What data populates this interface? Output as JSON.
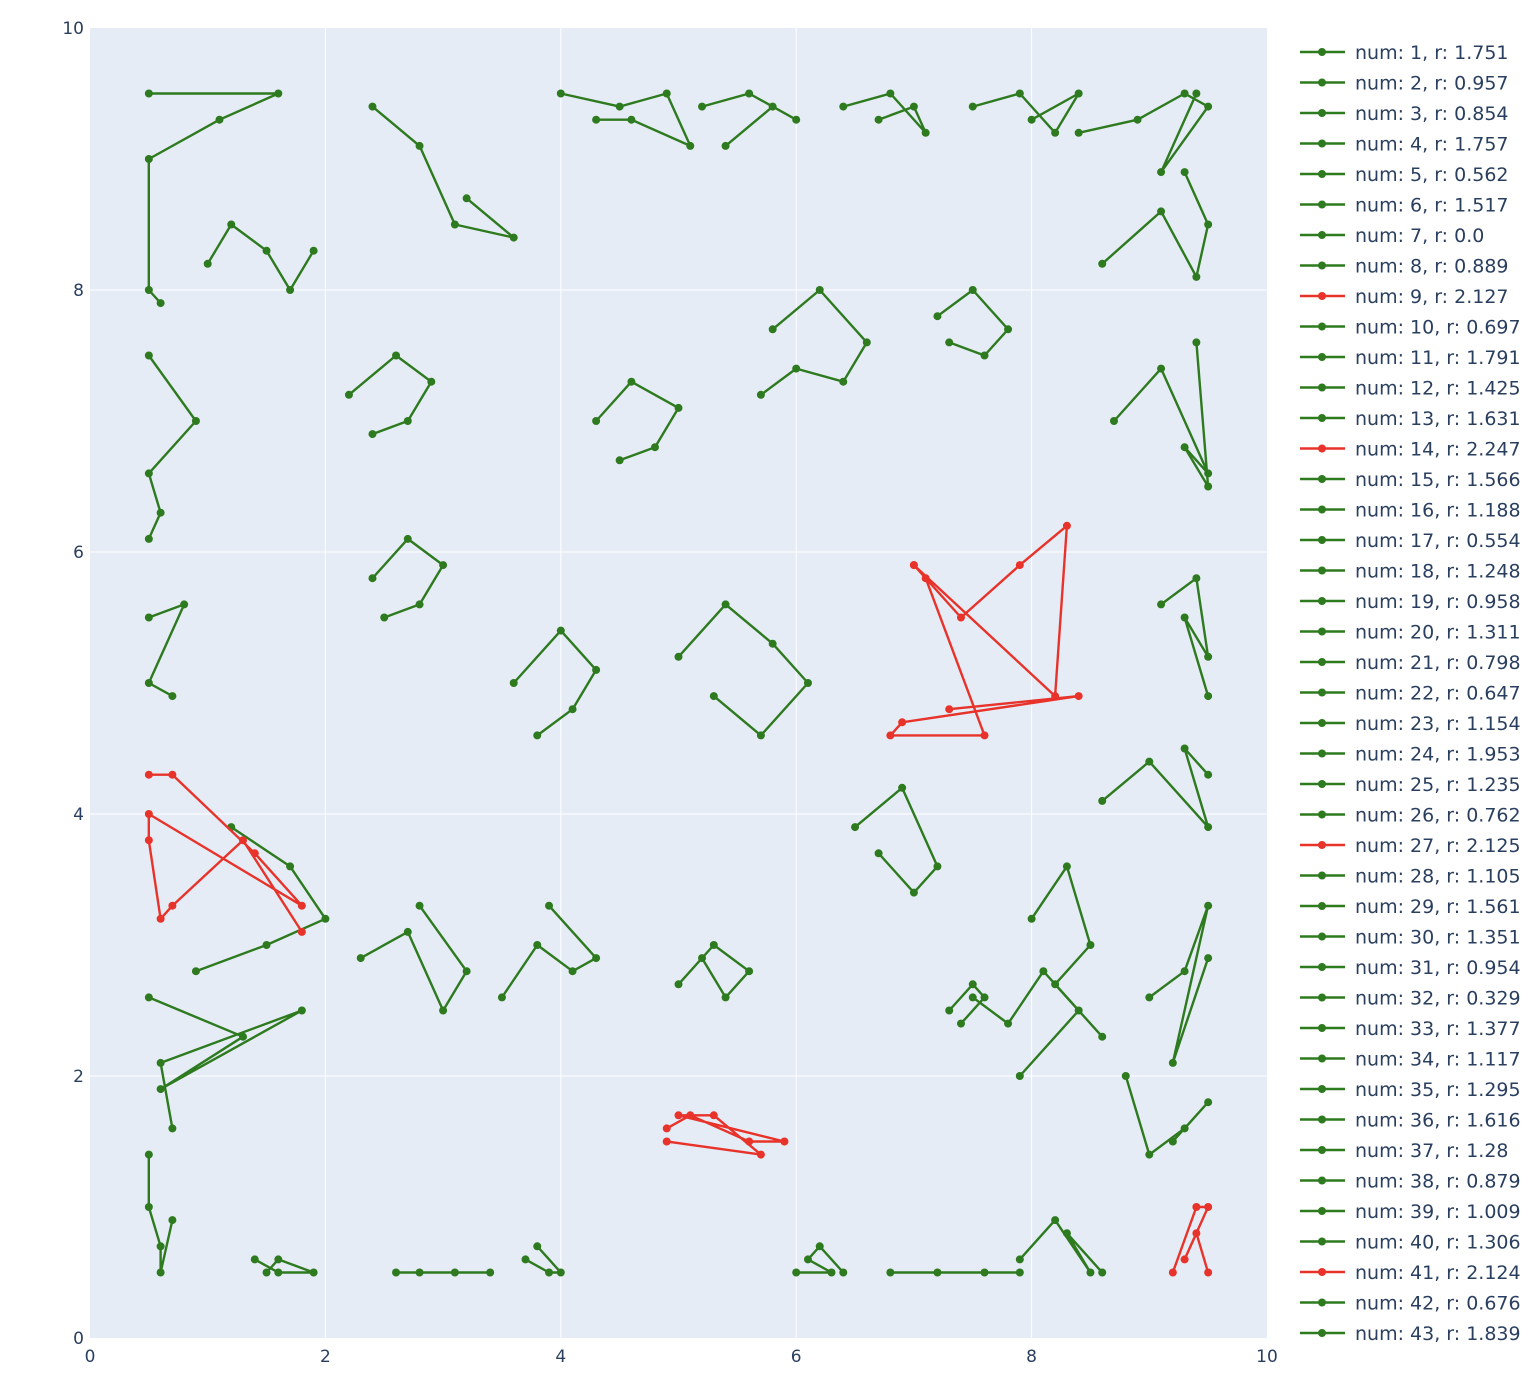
{
  "chart_data": {
    "type": "line",
    "title": "",
    "xlabel": "",
    "ylabel": "",
    "xlim": [
      0,
      10
    ],
    "ylim": [
      0,
      10
    ],
    "x_ticks": [
      "0",
      "2",
      "4",
      "6",
      "8",
      "10"
    ],
    "y_ticks": [
      "0",
      "2",
      "4",
      "6",
      "8",
      "10"
    ],
    "grid": true,
    "legend_position": "right",
    "colors": {
      "normal": "#2e7a1f",
      "highlight": "#e8332a",
      "plot_bg": "#e5ecf6",
      "grid": "#ffffff"
    },
    "series": [
      {
        "name": "num: 1, r: 1.751",
        "x": [
          0.5,
          1.6,
          1.1,
          0.5,
          0.5,
          0.6
        ],
        "y": [
          9.5,
          9.5,
          9.3,
          9.0,
          8.0,
          7.9
        ]
      },
      {
        "name": "num: 2, r: 0.957",
        "x": [
          0.5,
          0.9,
          0.5,
          0.6,
          0.5
        ],
        "y": [
          7.5,
          7.0,
          6.6,
          6.3,
          6.1
        ]
      },
      {
        "name": "num: 3, r: 0.854",
        "x": [
          0.5,
          0.8,
          0.5,
          0.7
        ],
        "y": [
          5.5,
          5.6,
          5.0,
          4.9
        ]
      },
      {
        "name": "num: 4, r: 1.757",
        "x": [
          0.5,
          1.3,
          0.6,
          1.8,
          0.6,
          0.7
        ],
        "y": [
          2.6,
          2.3,
          1.9,
          2.5,
          2.1,
          1.6
        ]
      },
      {
        "name": "num: 5, r: 0.562",
        "x": [
          0.5,
          0.5,
          0.6,
          0.6,
          0.7
        ],
        "y": [
          1.4,
          1.0,
          0.7,
          0.5,
          0.9
        ]
      },
      {
        "name": "num: 6, r: 1.517",
        "x": [
          1.4,
          1.6,
          1.9,
          1.6,
          1.5
        ],
        "y": [
          0.6,
          0.5,
          0.5,
          0.6,
          0.5
        ]
      },
      {
        "name": "num: 7, r: 0.0",
        "x": [
          2.6,
          2.8,
          3.1,
          3.4
        ],
        "y": [
          0.5,
          0.5,
          0.5,
          0.5
        ]
      },
      {
        "name": "num: 8, r: 0.889",
        "x": [
          3.7,
          3.9,
          4.0,
          3.8
        ],
        "y": [
          0.6,
          0.5,
          0.5,
          0.7
        ]
      },
      {
        "name": "num: 9, r: 2.127",
        "x": [
          4.9,
          5.1,
          5.6,
          5.9,
          5.0,
          5.3,
          5.7,
          4.9
        ],
        "y": [
          1.6,
          1.7,
          1.5,
          1.5,
          1.7,
          1.7,
          1.4,
          1.5
        ]
      },
      {
        "name": "num: 10, r: 0.697",
        "x": [
          6.0,
          6.3,
          6.1,
          6.2,
          6.4
        ],
        "y": [
          0.5,
          0.5,
          0.6,
          0.7,
          0.5
        ]
      },
      {
        "name": "num: 11, r: 1.791",
        "x": [
          6.8,
          7.2,
          7.6,
          7.9
        ],
        "y": [
          0.5,
          0.5,
          0.5,
          0.5
        ]
      },
      {
        "name": "num: 12, r: 1.425",
        "x": [
          7.9,
          8.2,
          8.5,
          8.3,
          8.6
        ],
        "y": [
          0.6,
          0.9,
          0.5,
          0.8,
          0.5
        ]
      },
      {
        "name": "num: 13, r: 1.631",
        "x": [
          8.8,
          9.0,
          9.3,
          9.5,
          9.2
        ],
        "y": [
          2.0,
          1.4,
          1.6,
          1.8,
          1.5
        ]
      },
      {
        "name": "num: 14, r: 2.247",
        "x": [
          9.2,
          9.4,
          9.5,
          9.3,
          9.4,
          9.5
        ],
        "y": [
          0.5,
          1.0,
          1.0,
          0.6,
          0.8,
          0.5
        ]
      },
      {
        "name": "num: 15, r: 1.566",
        "x": [
          9.0,
          9.3,
          9.5,
          9.2,
          9.5
        ],
        "y": [
          2.6,
          2.8,
          3.3,
          2.1,
          2.9
        ]
      },
      {
        "name": "num: 16, r: 1.188",
        "x": [
          8.6,
          9.0,
          9.5,
          9.3,
          9.5
        ],
        "y": [
          4.1,
          4.4,
          3.9,
          4.5,
          4.3
        ]
      },
      {
        "name": "num: 17, r: 0.554",
        "x": [
          9.1,
          9.4,
          9.5,
          9.3,
          9.5
        ],
        "y": [
          5.6,
          5.8,
          5.2,
          5.5,
          4.9
        ]
      },
      {
        "name": "num: 18, r: 1.248",
        "x": [
          8.7,
          9.1,
          9.5,
          9.3,
          9.5,
          9.4
        ],
        "y": [
          7.0,
          7.4,
          6.6,
          6.8,
          6.5,
          7.6
        ]
      },
      {
        "name": "num: 19, r: 0.958",
        "x": [
          8.6,
          9.1,
          9.4,
          9.5,
          9.3
        ],
        "y": [
          8.2,
          8.6,
          8.1,
          8.5,
          8.9
        ]
      },
      {
        "name": "num: 20, r: 1.311",
        "x": [
          8.4,
          8.9,
          9.3,
          9.5,
          9.1,
          9.4
        ],
        "y": [
          9.2,
          9.3,
          9.5,
          9.4,
          8.9,
          9.5
        ]
      },
      {
        "name": "num: 21, r: 0.798",
        "x": [
          7.5,
          7.9,
          8.2,
          8.4,
          8.0
        ],
        "y": [
          9.4,
          9.5,
          9.2,
          9.5,
          9.3
        ]
      },
      {
        "name": "num: 22, r: 0.647",
        "x": [
          6.4,
          6.8,
          7.1,
          7.0,
          6.7
        ],
        "y": [
          9.4,
          9.5,
          9.2,
          9.4,
          9.3
        ]
      },
      {
        "name": "num: 23, r: 1.154",
        "x": [
          5.2,
          5.6,
          6.0,
          5.8,
          5.4
        ],
        "y": [
          9.4,
          9.5,
          9.3,
          9.4,
          9.1
        ]
      },
      {
        "name": "num: 24, r: 1.953",
        "x": [
          4.0,
          4.5,
          4.9,
          5.1,
          4.6,
          4.3
        ],
        "y": [
          9.5,
          9.4,
          9.5,
          9.1,
          9.3,
          9.3
        ]
      },
      {
        "name": "num: 25, r: 1.235",
        "x": [
          2.4,
          2.8,
          3.1,
          3.6,
          3.2
        ],
        "y": [
          9.4,
          9.1,
          8.5,
          8.4,
          8.7
        ]
      },
      {
        "name": "num: 26, r: 0.762",
        "x": [
          1.0,
          1.2,
          1.5,
          1.7,
          1.9
        ],
        "y": [
          8.2,
          8.5,
          8.3,
          8.0,
          8.3
        ]
      },
      {
        "name": "num: 27, r: 2.125",
        "x": [
          0.5,
          0.7,
          1.4,
          1.8,
          0.5,
          0.5,
          0.6,
          0.7,
          1.3,
          1.8
        ],
        "y": [
          4.3,
          4.3,
          3.7,
          3.3,
          4.0,
          3.8,
          3.2,
          3.3,
          3.8,
          3.1
        ]
      },
      {
        "name": "num: 28, r: 1.105",
        "x": [
          0.9,
          1.5,
          2.0,
          1.7,
          1.2
        ],
        "y": [
          2.8,
          3.0,
          3.2,
          3.6,
          3.9
        ]
      },
      {
        "name": "num: 29, r: 1.561",
        "x": [
          2.3,
          2.7,
          3.0,
          3.2,
          2.8
        ],
        "y": [
          2.9,
          3.1,
          2.5,
          2.8,
          3.3
        ]
      },
      {
        "name": "num: 30, r: 1.351",
        "x": [
          3.5,
          3.8,
          4.1,
          4.3,
          3.9
        ],
        "y": [
          2.6,
          3.0,
          2.8,
          2.9,
          3.3
        ]
      },
      {
        "name": "num: 31, r: 0.954",
        "x": [
          5.0,
          5.3,
          5.6,
          5.4,
          5.2
        ],
        "y": [
          2.7,
          3.0,
          2.8,
          2.6,
          2.9
        ]
      },
      {
        "name": "num: 32, r: 0.329",
        "x": [
          7.3,
          7.5,
          7.6,
          7.4
        ],
        "y": [
          2.5,
          2.7,
          2.6,
          2.4
        ]
      },
      {
        "name": "num: 33, r: 1.377",
        "x": [
          7.5,
          7.8,
          8.1,
          8.4,
          7.9
        ],
        "y": [
          2.6,
          2.4,
          2.8,
          2.5,
          2.0
        ]
      },
      {
        "name": "num: 34, r: 1.117",
        "x": [
          8.0,
          8.3,
          8.5,
          8.2,
          8.6
        ],
        "y": [
          3.2,
          3.6,
          3.0,
          2.7,
          2.3
        ]
      },
      {
        "name": "num: 35, r: 1.295",
        "x": [
          6.5,
          6.9,
          7.2,
          7.0,
          6.7
        ],
        "y": [
          3.9,
          4.2,
          3.6,
          3.4,
          3.7
        ]
      },
      {
        "name": "num: 36, r: 1.616",
        "x": [
          5.0,
          5.4,
          5.8,
          6.1,
          5.7,
          5.3
        ],
        "y": [
          5.2,
          5.6,
          5.3,
          5.0,
          4.6,
          4.9
        ]
      },
      {
        "name": "num: 37, r: 1.28",
        "x": [
          3.6,
          4.0,
          4.3,
          4.1,
          3.8
        ],
        "y": [
          5.0,
          5.4,
          5.1,
          4.8,
          4.6
        ]
      },
      {
        "name": "num: 38, r: 0.879",
        "x": [
          2.4,
          2.7,
          3.0,
          2.8,
          2.5
        ],
        "y": [
          5.8,
          6.1,
          5.9,
          5.6,
          5.5
        ]
      },
      {
        "name": "num: 39, r: 1.009",
        "x": [
          2.2,
          2.6,
          2.9,
          2.7,
          2.4
        ],
        "y": [
          7.2,
          7.5,
          7.3,
          7.0,
          6.9
        ]
      },
      {
        "name": "num: 40, r: 1.306",
        "x": [
          4.3,
          4.6,
          5.0,
          4.8,
          4.5
        ],
        "y": [
          7.0,
          7.3,
          7.1,
          6.8,
          6.7
        ]
      },
      {
        "name": "num: 41, r: 2.124",
        "x": [
          7.0,
          7.4,
          7.9,
          8.3,
          8.2,
          7.0,
          7.1,
          7.6,
          6.8,
          6.9,
          8.4,
          7.3
        ],
        "y": [
          5.9,
          5.5,
          5.9,
          6.2,
          4.9,
          5.9,
          5.8,
          4.6,
          4.6,
          4.7,
          4.9,
          4.8
        ]
      },
      {
        "name": "num: 42, r: 0.676",
        "x": [
          7.2,
          7.5,
          7.8,
          7.6,
          7.3
        ],
        "y": [
          7.8,
          8.0,
          7.7,
          7.5,
          7.6
        ]
      },
      {
        "name": "num: 43, r: 1.839",
        "x": [
          5.8,
          6.2,
          6.6,
          6.4,
          6.0,
          5.7
        ],
        "y": [
          7.7,
          8.0,
          7.6,
          7.3,
          7.4,
          7.2
        ]
      }
    ]
  }
}
